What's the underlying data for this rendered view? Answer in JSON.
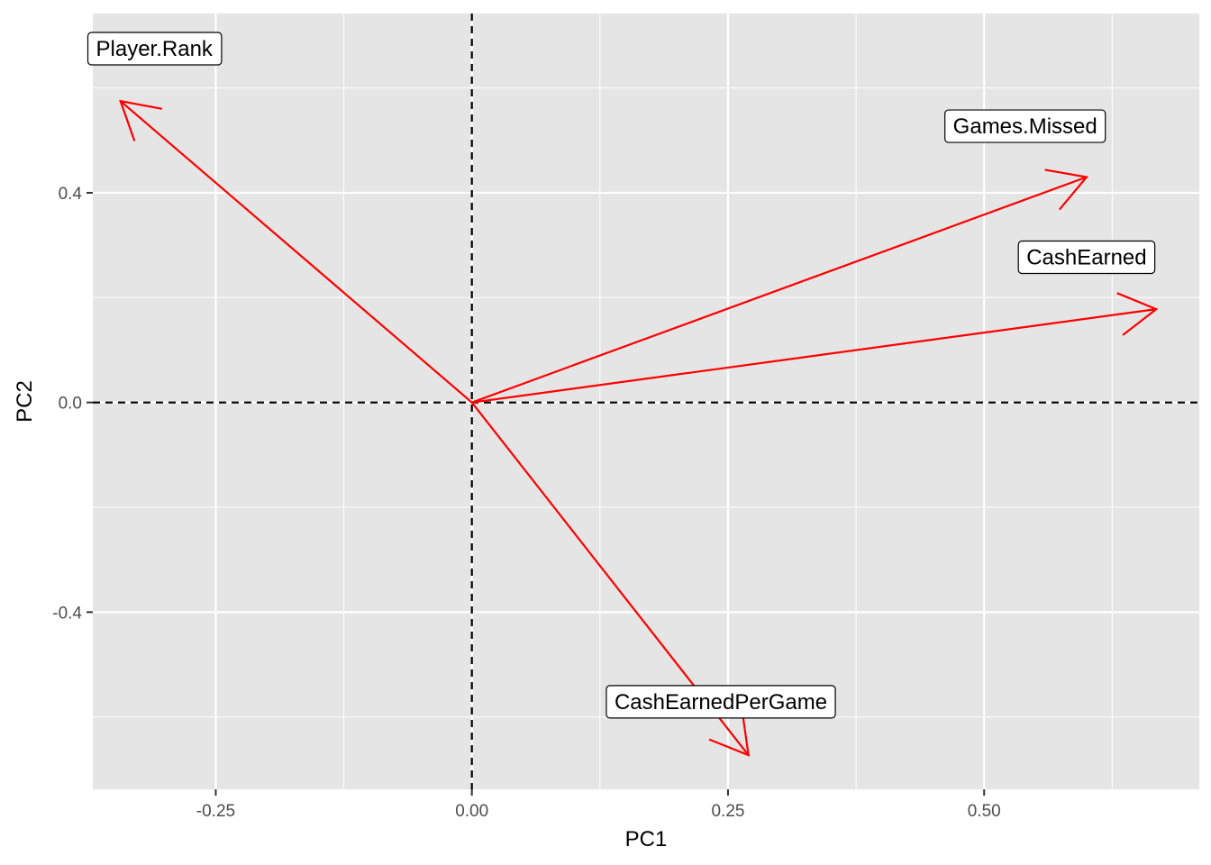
{
  "chart_data": {
    "type": "biplot",
    "title": "",
    "xlabel": "PC1",
    "ylabel": "PC2",
    "xlim": [
      -0.37,
      0.71
    ],
    "ylim": [
      -0.738,
      0.742
    ],
    "x_ticks": [
      -0.25,
      0.0,
      0.25,
      0.5
    ],
    "x_tick_labels": [
      "-0.25",
      "0.00",
      "0.25",
      "0.50"
    ],
    "y_ticks": [
      -0.4,
      0.0,
      0.4
    ],
    "y_tick_labels": [
      "-0.4",
      "0.0",
      "0.4"
    ],
    "grid": true,
    "reference_lines": {
      "x": 0,
      "y": 0,
      "style": "dashed"
    },
    "arrow_color": "#ff0000",
    "background_color": "#e5e5e5",
    "grid_color": "#ffffff",
    "series": [
      {
        "name": "Player.Rank",
        "x": -0.343,
        "y": 0.575,
        "label_x": -0.31,
        "label_y": 0.675
      },
      {
        "name": "Games.Missed",
        "x": 0.6,
        "y": 0.43,
        "label_x": 0.54,
        "label_y": 0.527
      },
      {
        "name": "CashEarned",
        "x": 0.668,
        "y": 0.178,
        "label_x": 0.6,
        "label_y": 0.277
      },
      {
        "name": "CashEarnedPerGame",
        "x": 0.27,
        "y": -0.673,
        "label_x": 0.243,
        "label_y": -0.571
      }
    ]
  }
}
